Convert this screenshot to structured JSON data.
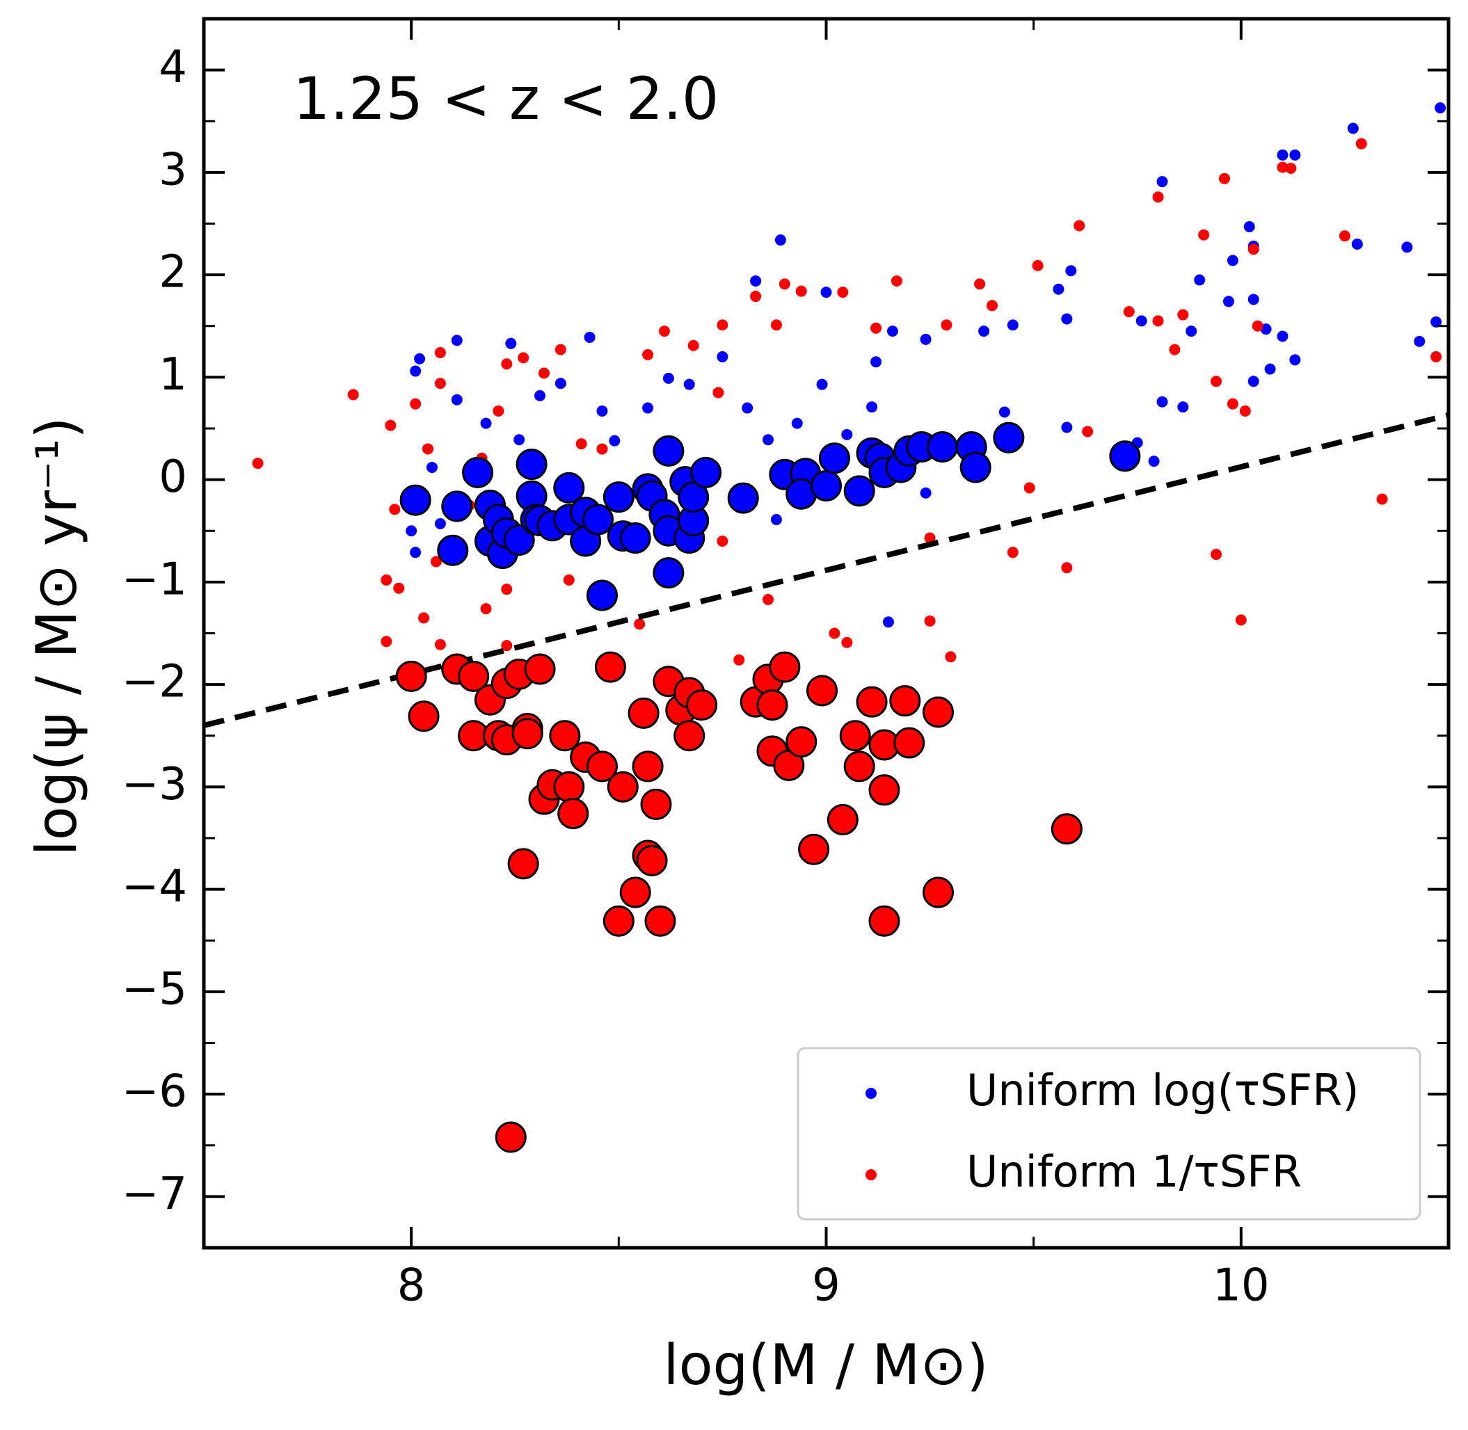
{
  "chart_data": {
    "type": "scatter",
    "annotation": "1.25 < z < 2.0",
    "xlabel": "log(M / M⊙)",
    "ylabel": "log(ψ / M⊙ yr⁻¹)",
    "xlim": [
      7.5,
      10.5
    ],
    "ylim": [
      -7.5,
      4.5
    ],
    "xticks": [
      8,
      9,
      10
    ],
    "yticks": [
      {
        "value": -7,
        "label": "−7"
      },
      {
        "value": -6,
        "label": "−6"
      },
      {
        "value": -5,
        "label": "−5"
      },
      {
        "value": -4,
        "label": "−4"
      },
      {
        "value": -3,
        "label": "−3"
      },
      {
        "value": -2,
        "label": "−2"
      },
      {
        "value": -1,
        "label": "−1"
      },
      0,
      1,
      2,
      3,
      4
    ],
    "xminor": [
      7.5,
      8.5,
      9.5,
      10.5
    ],
    "yminor": [
      -7.5,
      -6.5,
      -5.5,
      -4.5,
      -3.5,
      -2.5,
      -1.5,
      -0.5,
      0.5,
      1.5,
      2.5,
      3.5,
      4.5
    ],
    "legend": "lower right",
    "series": [
      {
        "name": "Uniform log(τSFR)",
        "color": "#0000ff",
        "marker_size": "small",
        "x": [
          8.02,
          8.01,
          8.11,
          8.24,
          8.43,
          8.89,
          8.83,
          9.0,
          9.81,
          10.27,
          10.1,
          10.13,
          10.48,
          10.4,
          10.02,
          10.03,
          10.28,
          9.98,
          9.9,
          10.03,
          9.97,
          9.76,
          9.88,
          10.06,
          10.1,
          10.13,
          10.07,
          10.03,
          9.86,
          9.81,
          9.75,
          9.79,
          9.59,
          9.58,
          9.56,
          9.45,
          9.58,
          9.43,
          9.38,
          9.24,
          9.16,
          9.12,
          9.11,
          9.05,
          8.99,
          8.93,
          8.86,
          8.81,
          8.75,
          8.67,
          8.62,
          8.57,
          8.49,
          8.46,
          8.36,
          8.31,
          8.26,
          8.18,
          8.11,
          8.05,
          8.07,
          8.0,
          8.01,
          8.88,
          9.24,
          9.15,
          10.43,
          10.47
        ],
        "values": [
          1.18,
          1.06,
          1.36,
          1.33,
          1.39,
          2.34,
          1.94,
          1.83,
          2.91,
          3.43,
          3.17,
          3.17,
          3.63,
          2.27,
          2.47,
          2.28,
          2.3,
          2.14,
          1.95,
          1.76,
          1.74,
          1.55,
          1.45,
          1.47,
          1.4,
          1.17,
          1.08,
          0.96,
          0.71,
          0.76,
          0.36,
          0.18,
          2.04,
          1.57,
          1.86,
          1.51,
          0.51,
          0.66,
          1.45,
          1.37,
          1.45,
          1.15,
          0.71,
          0.44,
          0.93,
          0.55,
          0.39,
          0.7,
          1.2,
          0.93,
          0.99,
          0.7,
          0.38,
          0.67,
          0.94,
          0.82,
          0.39,
          0.55,
          0.78,
          0.12,
          -0.43,
          -0.5,
          -0.71,
          -0.39,
          -0.13,
          -1.39,
          1.35,
          1.54
        ]
      },
      {
        "name": "Uniform 1/τSFR",
        "color": "#ff0000",
        "marker_size": "small",
        "x": [
          7.63,
          7.86,
          7.95,
          7.94,
          7.94,
          7.97,
          7.96,
          8.07,
          8.07,
          8.01,
          8.04,
          8.07,
          8.03,
          8.06,
          8.23,
          8.27,
          8.21,
          8.17,
          8.14,
          8.18,
          8.23,
          8.23,
          8.32,
          8.36,
          8.41,
          8.46,
          8.57,
          8.61,
          8.68,
          8.75,
          8.74,
          8.83,
          8.9,
          8.94,
          8.88,
          9.04,
          9.12,
          9.17,
          9.29,
          9.37,
          9.4,
          9.51,
          9.61,
          9.8,
          9.96,
          9.91,
          10.03,
          10.1,
          10.12,
          10.25,
          10.29,
          9.73,
          9.8,
          9.84,
          9.86,
          10.04,
          9.94,
          9.98,
          10.01,
          9.63,
          9.49,
          9.45,
          9.58,
          9.94,
          10.0,
          10.34,
          10.47,
          9.25,
          9.25,
          9.3,
          9.05,
          9.02,
          8.79,
          8.86,
          8.75,
          8.55,
          8.38
        ],
        "values": [
          0.16,
          0.83,
          0.53,
          -0.98,
          -1.58,
          -1.06,
          -0.29,
          1.24,
          0.94,
          0.74,
          0.3,
          -1.61,
          -1.35,
          -0.8,
          1.13,
          1.19,
          0.67,
          0.21,
          -0.25,
          -1.26,
          -1.07,
          -1.62,
          1.04,
          1.27,
          0.35,
          0.3,
          1.22,
          1.45,
          1.31,
          1.51,
          0.85,
          1.79,
          1.91,
          1.84,
          1.51,
          1.83,
          1.48,
          1.94,
          1.51,
          1.91,
          1.7,
          2.09,
          2.48,
          2.76,
          2.94,
          2.39,
          2.25,
          3.05,
          3.04,
          2.38,
          3.28,
          1.64,
          1.55,
          1.27,
          1.61,
          1.5,
          0.96,
          0.74,
          0.67,
          0.47,
          -0.08,
          -0.71,
          -0.86,
          -0.73,
          -1.37,
          -0.19,
          1.2,
          -0.57,
          -1.38,
          -1.73,
          -1.59,
          -1.5,
          -1.76,
          -1.17,
          -0.6,
          -1.41,
          -0.98
        ]
      },
      {
        "type": "line",
        "color": "#000000",
        "linestyle": "dashed",
        "x": [
          7.5,
          10.5
        ],
        "values": [
          -2.4,
          0.63
        ]
      },
      {
        "color": "#0000ff",
        "marker_size": "large",
        "edgecolor": "#000000",
        "x": [
          8.01,
          8.1,
          8.11,
          8.16,
          8.19,
          8.19,
          8.21,
          8.22,
          8.23,
          8.26,
          8.29,
          8.29,
          8.3,
          8.31,
          8.34,
          8.38,
          8.38,
          8.42,
          8.42,
          8.46,
          8.45,
          8.5,
          8.51,
          8.54,
          8.57,
          8.58,
          8.61,
          8.62,
          8.62,
          8.62,
          8.66,
          8.67,
          8.68,
          8.68,
          8.71,
          8.8,
          8.9,
          8.95,
          8.94,
          9.0,
          9.02,
          9.08,
          9.11,
          9.13,
          9.14,
          9.18,
          9.2,
          9.23,
          9.28,
          9.35,
          9.36,
          9.44,
          9.72
        ],
        "values": [
          -0.2,
          -0.69,
          -0.26,
          0.07,
          -0.6,
          -0.25,
          -0.39,
          -0.72,
          -0.52,
          -0.59,
          0.15,
          -0.16,
          -0.39,
          -0.4,
          -0.45,
          -0.08,
          -0.39,
          -0.6,
          -0.32,
          -1.13,
          -0.39,
          -0.17,
          -0.55,
          -0.57,
          -0.09,
          -0.16,
          -0.34,
          -0.5,
          0.28,
          -0.91,
          -0.02,
          -0.57,
          -0.4,
          -0.17,
          0.07,
          -0.18,
          0.05,
          0.06,
          -0.14,
          -0.06,
          0.21,
          -0.11,
          0.26,
          0.21,
          0.07,
          0.12,
          0.28,
          0.32,
          0.32,
          0.32,
          0.12,
          0.41,
          0.23
        ]
      },
      {
        "color": "#ff0000",
        "marker_size": "large",
        "edgecolor": "#000000",
        "x": [
          8.0,
          8.03,
          8.11,
          8.15,
          8.15,
          8.19,
          8.21,
          8.23,
          8.23,
          8.26,
          8.28,
          8.28,
          8.27,
          8.31,
          8.32,
          8.34,
          8.37,
          8.38,
          8.39,
          8.42,
          8.46,
          8.48,
          8.51,
          8.54,
          8.5,
          8.56,
          8.57,
          8.57,
          8.58,
          8.59,
          8.6,
          8.62,
          8.65,
          8.67,
          8.67,
          8.7,
          8.83,
          8.86,
          8.87,
          8.87,
          8.9,
          8.91,
          8.94,
          8.99,
          8.97,
          9.04,
          9.07,
          9.08,
          9.11,
          9.14,
          9.14,
          9.14,
          9.19,
          9.2,
          9.27,
          9.27,
          9.58,
          8.24
        ],
        "values": [
          -1.92,
          -2.31,
          -1.85,
          -1.92,
          -2.5,
          -2.15,
          -2.5,
          -1.99,
          -2.54,
          -1.9,
          -2.43,
          -2.48,
          -3.75,
          -1.85,
          -3.12,
          -2.98,
          -2.5,
          -3.0,
          -3.26,
          -2.71,
          -2.8,
          -1.83,
          -3.0,
          -4.03,
          -4.31,
          -2.28,
          -2.8,
          -3.67,
          -3.72,
          -3.17,
          -4.31,
          -1.97,
          -2.25,
          -2.08,
          -2.5,
          -2.2,
          -2.17,
          -1.95,
          -2.2,
          -2.65,
          -1.83,
          -2.79,
          -2.56,
          -2.06,
          -3.61,
          -3.32,
          -2.5,
          -2.8,
          -2.17,
          -3.03,
          -4.31,
          -2.59,
          -2.16,
          -2.57,
          -2.27,
          -4.03,
          -3.41,
          -6.42
        ]
      }
    ]
  }
}
